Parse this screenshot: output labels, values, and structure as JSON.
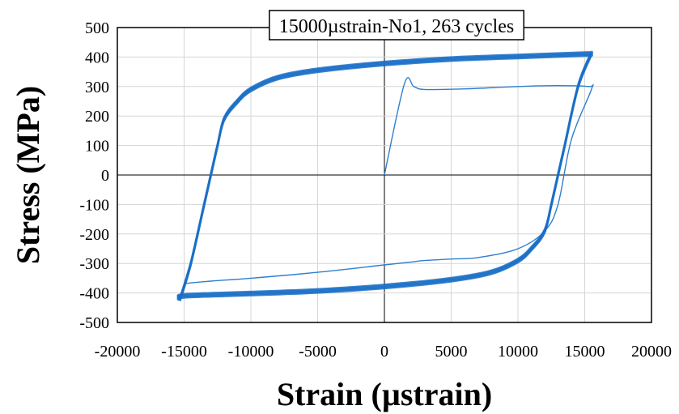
{
  "chart_data": {
    "type": "line",
    "title": "15000µstrain-No1, 263 cycles",
    "xlabel": "Strain (µstrain)",
    "ylabel": "Stress (MPa)",
    "xlim": [
      -20000,
      20000
    ],
    "ylim": [
      -500,
      500
    ],
    "xticks": [
      -20000,
      -15000,
      -10000,
      -5000,
      0,
      5000,
      10000,
      15000,
      20000
    ],
    "yticks": [
      -500,
      -400,
      -300,
      -200,
      -100,
      0,
      100,
      200,
      300,
      400,
      500
    ],
    "grid": true,
    "legend": "none",
    "series": [
      {
        "role": "first-cycle",
        "color": "#2f7fd0",
        "x": [
          0,
          1500,
          2200,
          3000,
          6000,
          10000,
          13000,
          15300,
          15500,
          14000,
          13000,
          12000,
          10000,
          7000,
          5000,
          3000,
          2000,
          0,
          -5000,
          -10000,
          -13000,
          -15000
        ],
        "y": [
          0,
          310,
          300,
          290,
          292,
          300,
          303,
          300,
          290,
          120,
          -100,
          -190,
          -250,
          -280,
          -285,
          -290,
          -295,
          -305,
          -330,
          -350,
          -360,
          -368
        ]
      },
      {
        "role": "stabilized-loop-upper",
        "color": "#1a6fc7",
        "x": [
          -15300,
          -14500,
          -13500,
          -13000,
          -12500,
          -12000,
          -11000,
          -10000,
          -8000,
          -5000,
          0,
          5000,
          10000,
          15000,
          15500
        ],
        "y": [
          -420,
          -300,
          -100,
          0,
          100,
          190,
          250,
          290,
          330,
          355,
          378,
          393,
          402,
          410,
          412
        ]
      },
      {
        "role": "stabilized-loop-lower",
        "color": "#1a6fc7",
        "x": [
          15500,
          14500,
          13500,
          13000,
          12500,
          12000,
          11000,
          10000,
          8000,
          5000,
          0,
          -5000,
          -10000,
          -15000,
          -15300
        ],
        "y": [
          412,
          300,
          100,
          0,
          -100,
          -190,
          -250,
          -290,
          -330,
          -355,
          -378,
          -393,
          -402,
          -410,
          -420
        ]
      }
    ]
  }
}
